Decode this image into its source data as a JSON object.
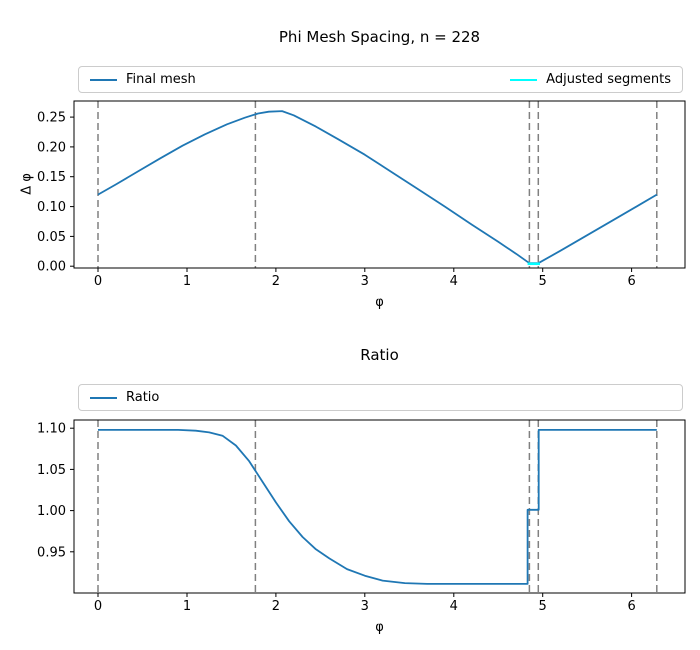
{
  "figure": {
    "background": "#ffffff",
    "spine_color": "#000000",
    "series_blue": "#1f77b4",
    "series_cyan": "#00ffff",
    "vline_color": "#808080",
    "text_color": "#000000"
  },
  "chart_data": [
    {
      "type": "line",
      "title": "Phi Mesh Spacing, n = 228",
      "xlabel": "φ",
      "ylabel": "Δ φ",
      "xlim": [
        -0.27,
        6.6
      ],
      "ylim": [
        -0.003,
        0.277
      ],
      "xticks": [
        0,
        1,
        2,
        3,
        4,
        5,
        6
      ],
      "xtick_labels": [
        "0",
        "1",
        "2",
        "3",
        "4",
        "5",
        "6"
      ],
      "yticks": [
        0,
        0.05,
        0.1,
        0.15,
        0.2,
        0.25
      ],
      "ytick_labels": [
        "0.00",
        "0.05",
        "0.10",
        "0.15",
        "0.20",
        "0.25"
      ],
      "grid": false,
      "legend": {
        "position": "above-expand",
        "entries": [
          {
            "label": "Final mesh",
            "color": "#1f77b4"
          },
          {
            "label": "Adjusted segments",
            "color": "#00ffff"
          }
        ]
      },
      "vlines": {
        "x": [
          0,
          1.77,
          4.85,
          4.95,
          6.283
        ],
        "style": "dashed",
        "color": "#808080"
      },
      "series": [
        {
          "name": "Final mesh",
          "color": "#1f77b4",
          "width": 1.8,
          "x": [
            0,
            0.2,
            0.45,
            0.7,
            0.95,
            1.2,
            1.45,
            1.65,
            1.8,
            1.92,
            2.07,
            2.2,
            2.45,
            2.7,
            3.0,
            3.3,
            3.6,
            3.9,
            4.2,
            4.5,
            4.7,
            4.85,
            4.95,
            5.2,
            5.5,
            5.8,
            6.1,
            6.283
          ],
          "y": [
            0.12,
            0.137,
            0.159,
            0.181,
            0.202,
            0.221,
            0.238,
            0.249,
            0.256,
            0.259,
            0.26,
            0.253,
            0.234,
            0.213,
            0.187,
            0.158,
            0.129,
            0.1,
            0.07,
            0.041,
            0.021,
            0.005,
            0.005,
            0.026,
            0.052,
            0.078,
            0.104,
            0.12
          ]
        },
        {
          "name": "Adjusted segments",
          "color": "#00ffff",
          "width": 2.5,
          "x": [
            4.83,
            4.97
          ],
          "y": [
            0.004,
            0.004
          ]
        }
      ]
    },
    {
      "type": "line",
      "title": "Ratio",
      "xlabel": "φ",
      "ylabel": "",
      "xlim": [
        -0.27,
        6.6
      ],
      "ylim": [
        0.9,
        1.11
      ],
      "xticks": [
        0,
        1,
        2,
        3,
        4,
        5,
        6
      ],
      "xtick_labels": [
        "0",
        "1",
        "2",
        "3",
        "4",
        "5",
        "6"
      ],
      "yticks": [
        0.95,
        1.0,
        1.05,
        1.1
      ],
      "ytick_labels": [
        "0.95",
        "1.00",
        "1.05",
        "1.10"
      ],
      "grid": false,
      "legend": {
        "position": "above-expand",
        "entries": [
          {
            "label": "Ratio",
            "color": "#1f77b4"
          }
        ]
      },
      "vlines": {
        "x": [
          0,
          1.77,
          4.85,
          4.95,
          6.283
        ],
        "style": "dashed",
        "color": "#808080"
      },
      "series": [
        {
          "name": "Ratio",
          "color": "#1f77b4",
          "width": 1.8,
          "x": [
            0,
            0.9,
            1.1,
            1.25,
            1.4,
            1.55,
            1.7,
            1.85,
            2.0,
            2.15,
            2.3,
            2.45,
            2.6,
            2.8,
            3.0,
            3.2,
            3.45,
            3.7,
            4.0,
            4.4,
            4.83,
            4.83,
            4.955,
            4.955,
            6.283
          ],
          "y": [
            1.098,
            1.098,
            1.097,
            1.095,
            1.091,
            1.079,
            1.06,
            1.035,
            1.01,
            0.987,
            0.968,
            0.953,
            0.942,
            0.929,
            0.921,
            0.915,
            0.912,
            0.911,
            0.911,
            0.911,
            0.911,
            1.001,
            1.001,
            1.098,
            1.098
          ]
        }
      ]
    }
  ]
}
